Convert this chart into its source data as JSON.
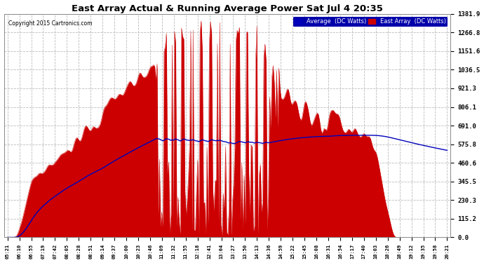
{
  "title_display": "East Array Actual & Running Average Power Sat Jul 4 20:35",
  "copyright": "Copyright 2015 Cartronics.com",
  "legend_avg": "Average  (DC Watts)",
  "legend_east": "East Array  (DC Watts)",
  "yticks": [
    0.0,
    115.2,
    230.3,
    345.5,
    460.6,
    575.8,
    691.0,
    806.1,
    921.3,
    1036.5,
    1151.6,
    1266.8,
    1381.9
  ],
  "ymax": 1381.9,
  "bg_color": "#ffffff",
  "plot_bg_color": "#ffffff",
  "grid_color": "#bbbbbb",
  "fill_color": "#cc0000",
  "line_color": "#cc0000",
  "avg_color": "#0000bb",
  "xtick_labels": [
    "05:21",
    "06:10",
    "06:55",
    "07:19",
    "07:42",
    "08:05",
    "08:28",
    "08:51",
    "09:14",
    "09:37",
    "10:00",
    "10:23",
    "10:46",
    "11:09",
    "11:32",
    "11:55",
    "12:18",
    "12:41",
    "13:04",
    "13:27",
    "13:50",
    "14:13",
    "14:36",
    "14:59",
    "15:22",
    "15:45",
    "16:08",
    "16:31",
    "16:54",
    "17:17",
    "17:40",
    "18:03",
    "18:26",
    "18:49",
    "19:12",
    "19:35",
    "19:58",
    "20:21"
  ],
  "n_xticks": 38,
  "n_points": 380,
  "peak_watt": 1350.0,
  "avg_peak_watt": 720.0
}
